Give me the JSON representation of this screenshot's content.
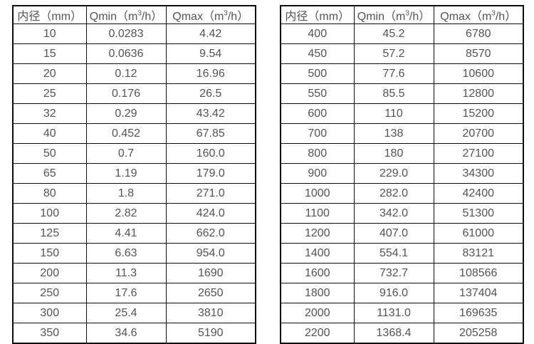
{
  "page": {
    "background_color": "#ffffff",
    "border_color": "#0d0d0d",
    "text_color": "#545454"
  },
  "columns": {
    "diameter": {
      "label": "内径（mm）"
    },
    "qmin": {
      "pre": "Qmin（m",
      "sup": "3",
      "post": "/h）"
    },
    "qmax": {
      "pre": "Qmax（m",
      "sup": "3",
      "post": "/h）"
    }
  },
  "table_left": {
    "rows": [
      {
        "diameter": "10",
        "qmin": "0.0283",
        "qmax": "4.42"
      },
      {
        "diameter": "15",
        "qmin": "0.0636",
        "qmax": "9.54"
      },
      {
        "diameter": "20",
        "qmin": "0.12",
        "qmax": "16.96"
      },
      {
        "diameter": "25",
        "qmin": "0.176",
        "qmax": "26.5"
      },
      {
        "diameter": "32",
        "qmin": "0.29",
        "qmax": "43.42"
      },
      {
        "diameter": "40",
        "qmin": "0.452",
        "qmax": "67.85"
      },
      {
        "diameter": "50",
        "qmin": "0.7",
        "qmax": "160.0"
      },
      {
        "diameter": "65",
        "qmin": "1.19",
        "qmax": "179.0"
      },
      {
        "diameter": "80",
        "qmin": "1.8",
        "qmax": "271.0"
      },
      {
        "diameter": "100",
        "qmin": "2.82",
        "qmax": "424.0"
      },
      {
        "diameter": "125",
        "qmin": "4.41",
        "qmax": "662.0"
      },
      {
        "diameter": "150",
        "qmin": "6.63",
        "qmax": "954.0"
      },
      {
        "diameter": "200",
        "qmin": "11.3",
        "qmax": "1690"
      },
      {
        "diameter": "250",
        "qmin": "17.6",
        "qmax": "2650"
      },
      {
        "diameter": "300",
        "qmin": "25.4",
        "qmax": "3810"
      },
      {
        "diameter": "350",
        "qmin": "34.6",
        "qmax": "5190"
      }
    ]
  },
  "table_right": {
    "rows": [
      {
        "diameter": "400",
        "qmin": "45.2",
        "qmax": "6780"
      },
      {
        "diameter": "450",
        "qmin": "57.2",
        "qmax": "8570"
      },
      {
        "diameter": "500",
        "qmin": "77.6",
        "qmax": "10600"
      },
      {
        "diameter": "550",
        "qmin": "85.5",
        "qmax": "12800"
      },
      {
        "diameter": "600",
        "qmin": "110",
        "qmax": "15200"
      },
      {
        "diameter": "700",
        "qmin": "138",
        "qmax": "20700"
      },
      {
        "diameter": "800",
        "qmin": "180",
        "qmax": "27100"
      },
      {
        "diameter": "900",
        "qmin": "229.0",
        "qmax": "34300"
      },
      {
        "diameter": "1000",
        "qmin": "282.0",
        "qmax": "42400"
      },
      {
        "diameter": "1100",
        "qmin": "342.0",
        "qmax": "51300"
      },
      {
        "diameter": "1200",
        "qmin": "407.0",
        "qmax": "61000"
      },
      {
        "diameter": "1400",
        "qmin": "554.1",
        "qmax": "83121"
      },
      {
        "diameter": "1600",
        "qmin": "732.7",
        "qmax": "108566"
      },
      {
        "diameter": "1800",
        "qmin": "916.0",
        "qmax": "137404"
      },
      {
        "diameter": "2000",
        "qmin": "1131.0",
        "qmax": "169635"
      },
      {
        "diameter": "2200",
        "qmin": "1368.4",
        "qmax": "205258"
      }
    ]
  }
}
